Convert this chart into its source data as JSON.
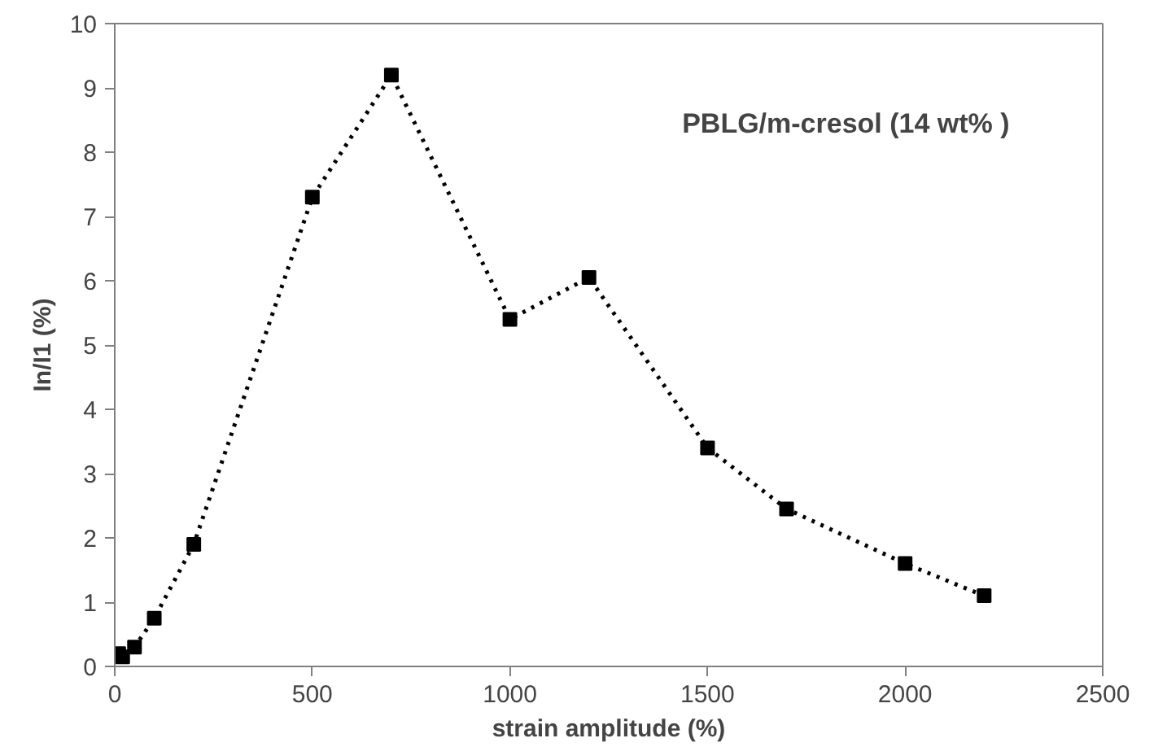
{
  "chart_data": {
    "type": "line",
    "xlabel": "strain amplitude (%)",
    "ylabel": "In/I1 (%)",
    "annotations": [
      "PBLG/m-cresol (14 wt% )"
    ],
    "x": [
      10,
      20,
      50,
      100,
      200,
      500,
      700,
      1000,
      1200,
      1500,
      1700,
      2000,
      2200
    ],
    "series": [
      {
        "color": "#000000",
        "values": [
          0.2,
          0.15,
          0.3,
          0.75,
          1.9,
          7.3,
          9.2,
          5.4,
          6.05,
          3.4,
          2.45,
          1.6,
          1.1
        ]
      }
    ],
    "xlim": [
      0,
      2500
    ],
    "xticks": [
      0,
      500,
      1000,
      1500,
      2000,
      2500
    ],
    "ylim": [
      0,
      10
    ],
    "yticks": [
      0,
      1,
      2,
      3,
      4,
      5,
      6,
      7,
      8,
      9,
      10
    ],
    "grid": false,
    "marker": "square",
    "line_style": "dotted"
  }
}
